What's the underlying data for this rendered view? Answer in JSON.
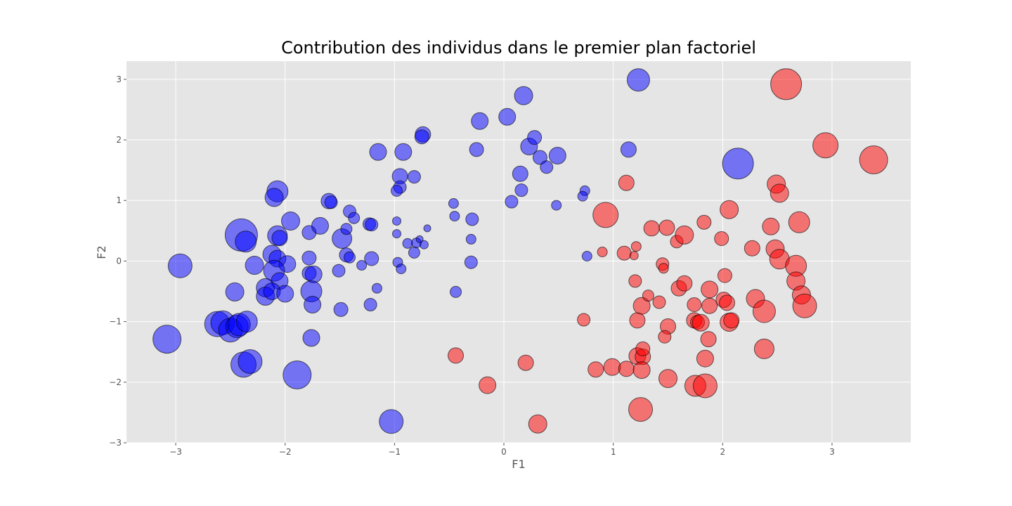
{
  "chart_data": {
    "type": "scatter",
    "title": "Contribution des individus dans le premier plan factoriel",
    "xlabel": "F1",
    "ylabel": "F2",
    "xlim": [
      -3.45,
      3.72
    ],
    "ylim": [
      -3.0,
      3.3
    ],
    "x_ticks": [
      -3,
      -2,
      -1,
      0,
      1,
      2,
      3
    ],
    "y_ticks": [
      -3,
      -2,
      -1,
      0,
      1,
      2,
      3
    ],
    "x_tick_labels": [
      "−3",
      "−2",
      "−1",
      "0",
      "1",
      "2",
      "3"
    ],
    "y_tick_labels": [
      "−3",
      "−2",
      "−1",
      "0",
      "1",
      "2",
      "3"
    ],
    "grid": true,
    "background": "#e5e5e5",
    "grid_color": "#ffffff",
    "colors": {
      "group_a": "#0000ff",
      "group_b": "#ff0000"
    },
    "point_opacity": 0.5,
    "marker_edge_color": "#000000",
    "series": [
      {
        "color": "#0000ff",
        "points": [
          [
            -3.08,
            -1.29,
            20
          ],
          [
            -2.96,
            -0.08,
            17
          ],
          [
            -2.62,
            -1.04,
            18
          ],
          [
            -2.57,
            -1.02,
            17
          ],
          [
            -2.5,
            -1.14,
            17
          ],
          [
            -2.44,
            -1.08,
            16
          ],
          [
            -2.42,
            -1.05,
            16
          ],
          [
            -2.35,
            -1.0,
            15
          ],
          [
            -2.38,
            -1.71,
            18
          ],
          [
            -2.32,
            -1.66,
            17
          ],
          [
            -1.89,
            -1.88,
            20
          ],
          [
            -2.4,
            0.43,
            23
          ],
          [
            -2.36,
            0.32,
            15
          ],
          [
            -2.07,
            1.15,
            15
          ],
          [
            -2.1,
            1.05,
            13
          ],
          [
            -2.07,
            0.42,
            14
          ],
          [
            -2.05,
            0.38,
            11
          ],
          [
            -1.95,
            0.66,
            13
          ],
          [
            -2.12,
            0.11,
            13
          ],
          [
            -2.07,
            0.04,
            12
          ],
          [
            -1.98,
            -0.05,
            12
          ],
          [
            -2.1,
            -0.16,
            15
          ],
          [
            -2.05,
            -0.33,
            12
          ],
          [
            -2.18,
            -0.44,
            13
          ],
          [
            -2.18,
            -0.58,
            13
          ],
          [
            -2.12,
            -0.5,
            12
          ],
          [
            -2.28,
            -0.07,
            13
          ],
          [
            -2.46,
            -0.51,
            13
          ],
          [
            -2.0,
            -0.54,
            12
          ],
          [
            -1.78,
            0.47,
            10
          ],
          [
            -1.68,
            0.58,
            12
          ],
          [
            -1.6,
            0.99,
            11
          ],
          [
            -1.58,
            0.97,
            9
          ],
          [
            -1.78,
            0.05,
            10
          ],
          [
            -1.78,
            -0.2,
            10
          ],
          [
            -1.74,
            -0.22,
            12
          ],
          [
            -1.76,
            -0.5,
            15
          ],
          [
            -1.75,
            -0.72,
            12
          ],
          [
            -1.76,
            -1.27,
            12
          ],
          [
            -1.48,
            0.37,
            14
          ],
          [
            -1.44,
            0.53,
            8
          ],
          [
            -1.41,
            0.82,
            9
          ],
          [
            -1.37,
            0.71,
            8
          ],
          [
            -1.44,
            0.1,
            10
          ],
          [
            -1.41,
            0.06,
            8
          ],
          [
            -1.51,
            -0.16,
            9
          ],
          [
            -1.49,
            -0.8,
            10
          ],
          [
            -1.3,
            -0.07,
            7
          ],
          [
            -1.23,
            0.61,
            9
          ],
          [
            -1.21,
            0.6,
            9
          ],
          [
            -1.21,
            0.04,
            10
          ],
          [
            -1.22,
            -0.72,
            9
          ],
          [
            -1.16,
            -0.45,
            7
          ],
          [
            -1.15,
            1.8,
            12
          ],
          [
            -0.92,
            1.8,
            12
          ],
          [
            -0.95,
            1.4,
            11
          ],
          [
            -0.95,
            1.22,
            9
          ],
          [
            -0.98,
            1.16,
            8
          ],
          [
            -0.82,
            1.39,
            9
          ],
          [
            -0.98,
            0.66,
            6
          ],
          [
            -0.98,
            0.45,
            6
          ],
          [
            -0.88,
            0.29,
            7
          ],
          [
            -0.8,
            0.3,
            7
          ],
          [
            -0.77,
            0.36,
            5
          ],
          [
            -0.73,
            0.27,
            6
          ],
          [
            -0.7,
            0.54,
            5
          ],
          [
            -0.82,
            0.14,
            8
          ],
          [
            -0.97,
            -0.02,
            7
          ],
          [
            -0.94,
            -0.13,
            7
          ],
          [
            -1.03,
            -2.65,
            17
          ],
          [
            -0.74,
            2.09,
            11
          ],
          [
            -0.75,
            2.05,
            10
          ],
          [
            -0.46,
            0.95,
            7
          ],
          [
            -0.45,
            0.74,
            7
          ],
          [
            -0.44,
            -0.51,
            8
          ],
          [
            -0.29,
            0.69,
            9
          ],
          [
            -0.3,
            0.36,
            7
          ],
          [
            -0.3,
            -0.02,
            9
          ],
          [
            -0.25,
            1.84,
            10
          ],
          [
            -0.22,
            2.31,
            12
          ],
          [
            0.03,
            2.38,
            12
          ],
          [
            0.18,
            2.73,
            13
          ],
          [
            0.07,
            0.98,
            9
          ],
          [
            0.15,
            1.44,
            11
          ],
          [
            0.16,
            1.17,
            9
          ],
          [
            0.23,
            1.89,
            12
          ],
          [
            0.28,
            2.04,
            10
          ],
          [
            0.33,
            1.71,
            10
          ],
          [
            0.39,
            1.55,
            9
          ],
          [
            0.49,
            1.74,
            12
          ],
          [
            0.48,
            0.92,
            7
          ],
          [
            0.74,
            1.16,
            7
          ],
          [
            0.72,
            1.07,
            7
          ],
          [
            0.76,
            0.08,
            7
          ],
          [
            1.14,
            1.84,
            11
          ],
          [
            1.23,
            2.99,
            16
          ],
          [
            2.14,
            1.61,
            22
          ]
        ]
      },
      {
        "color": "#ff0000",
        "points": [
          [
            -0.44,
            -1.56,
            11
          ],
          [
            -0.15,
            -2.05,
            12
          ],
          [
            0.2,
            -1.68,
            11
          ],
          [
            0.31,
            -2.69,
            13
          ],
          [
            0.73,
            -0.97,
            9
          ],
          [
            0.84,
            -1.79,
            11
          ],
          [
            0.9,
            0.15,
            7
          ],
          [
            0.93,
            0.76,
            18
          ],
          [
            0.99,
            -1.75,
            12
          ],
          [
            1.1,
            0.13,
            10
          ],
          [
            1.12,
            1.29,
            11
          ],
          [
            1.12,
            -1.78,
            11
          ],
          [
            1.19,
            0.09,
            6
          ],
          [
            1.21,
            0.24,
            7
          ],
          [
            1.2,
            -0.33,
            9
          ],
          [
            1.22,
            -0.98,
            11
          ],
          [
            1.26,
            -0.74,
            12
          ],
          [
            1.22,
            -1.57,
            12
          ],
          [
            1.27,
            -1.58,
            11
          ],
          [
            1.26,
            -1.8,
            12
          ],
          [
            1.27,
            -1.45,
            10
          ],
          [
            1.25,
            -2.45,
            17
          ],
          [
            1.35,
            0.54,
            11
          ],
          [
            1.32,
            -0.57,
            8
          ],
          [
            1.42,
            -0.68,
            9
          ],
          [
            1.45,
            -0.05,
            9
          ],
          [
            1.46,
            -0.12,
            7
          ],
          [
            1.49,
            0.55,
            11
          ],
          [
            1.5,
            -1.08,
            11
          ],
          [
            1.47,
            -1.25,
            9
          ],
          [
            1.5,
            -1.94,
            13
          ],
          [
            1.58,
            0.32,
            9
          ],
          [
            1.6,
            -0.45,
            11
          ],
          [
            1.65,
            0.43,
            13
          ],
          [
            1.65,
            -0.37,
            11
          ],
          [
            1.74,
            -0.72,
            10
          ],
          [
            1.74,
            -0.98,
            11
          ],
          [
            1.77,
            -1.01,
            10
          ],
          [
            1.8,
            -1.02,
            12
          ],
          [
            1.75,
            -2.06,
            15
          ],
          [
            1.84,
            -2.06,
            17
          ],
          [
            1.83,
            0.64,
            10
          ],
          [
            1.88,
            -0.47,
            12
          ],
          [
            1.88,
            -0.74,
            11
          ],
          [
            1.87,
            -1.29,
            11
          ],
          [
            1.84,
            -1.61,
            12
          ],
          [
            1.99,
            0.37,
            10
          ],
          [
            2.02,
            -0.24,
            10
          ],
          [
            2.01,
            -0.64,
            11
          ],
          [
            2.04,
            -0.69,
            11
          ],
          [
            2.06,
            -1.01,
            13
          ],
          [
            2.08,
            -0.98,
            11
          ],
          [
            2.06,
            0.85,
            13
          ],
          [
            2.27,
            0.21,
            11
          ],
          [
            2.3,
            -0.62,
            13
          ],
          [
            2.38,
            -0.83,
            16
          ],
          [
            2.38,
            -1.45,
            14
          ],
          [
            2.44,
            0.57,
            12
          ],
          [
            2.48,
            0.2,
            13
          ],
          [
            2.49,
            1.27,
            13
          ],
          [
            2.52,
            1.12,
            13
          ],
          [
            2.52,
            0.03,
            14
          ],
          [
            2.58,
            2.92,
            22
          ],
          [
            2.67,
            -0.08,
            15
          ],
          [
            2.67,
            -0.33,
            13
          ],
          [
            2.7,
            0.64,
            15
          ],
          [
            2.72,
            -0.56,
            13
          ],
          [
            2.75,
            -0.74,
            17
          ],
          [
            2.94,
            1.91,
            18
          ],
          [
            3.38,
            1.67,
            20
          ]
        ]
      }
    ]
  }
}
